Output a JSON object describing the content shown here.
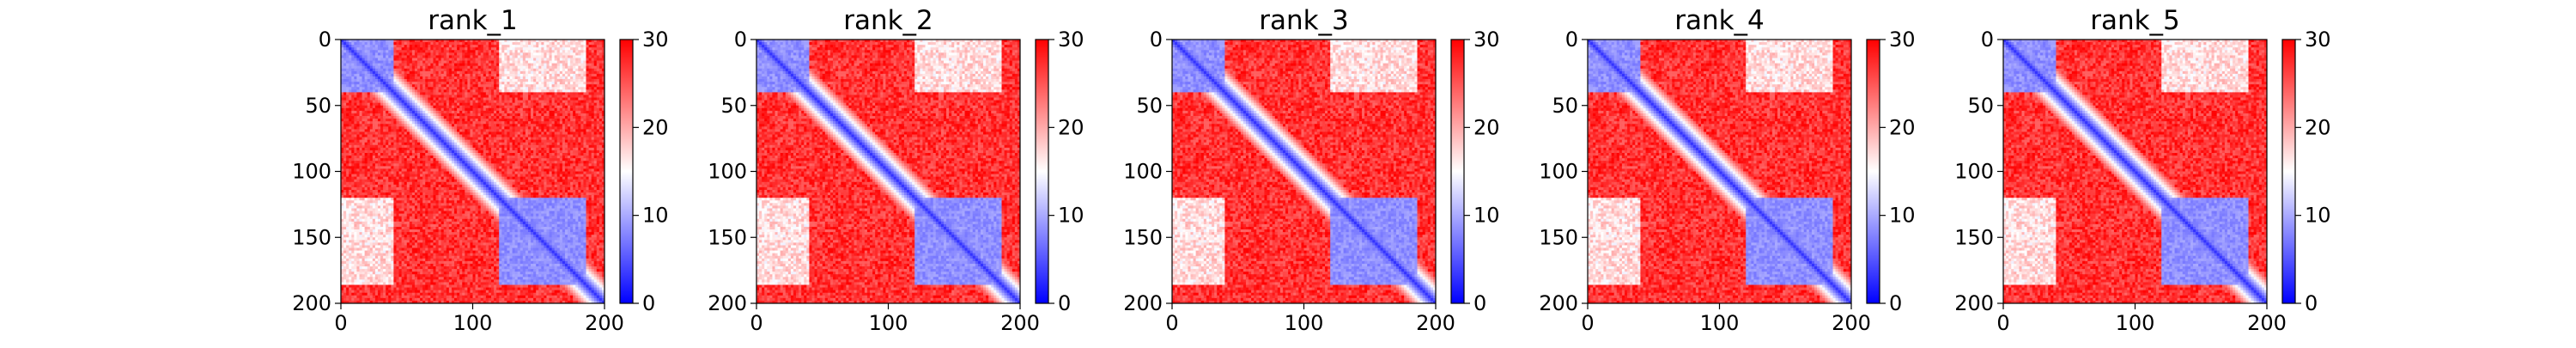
{
  "chart_data": [
    {
      "type": "heatmap",
      "title": "rank_1",
      "xlim": [
        0,
        200
      ],
      "ylim": [
        200,
        0
      ],
      "x_ticks": [
        "0",
        "100",
        "200"
      ],
      "y_ticks": [
        "0",
        "50",
        "100",
        "150",
        "200"
      ],
      "colorbar": {
        "range": [
          0,
          30
        ],
        "ticks": [
          "0",
          "10",
          "20",
          "30"
        ],
        "colors": [
          "#0000ff",
          "#ffffff",
          "#ff0000"
        ]
      }
    },
    {
      "type": "heatmap",
      "title": "rank_2",
      "xlim": [
        0,
        200
      ],
      "ylim": [
        200,
        0
      ],
      "x_ticks": [
        "0",
        "100",
        "200"
      ],
      "y_ticks": [
        "0",
        "50",
        "100",
        "150",
        "200"
      ],
      "colorbar": {
        "range": [
          0,
          30
        ],
        "ticks": [
          "0",
          "10",
          "20",
          "30"
        ],
        "colors": [
          "#0000ff",
          "#ffffff",
          "#ff0000"
        ]
      }
    },
    {
      "type": "heatmap",
      "title": "rank_3",
      "xlim": [
        0,
        200
      ],
      "ylim": [
        200,
        0
      ],
      "x_ticks": [
        "0",
        "100",
        "200"
      ],
      "y_ticks": [
        "0",
        "50",
        "100",
        "150",
        "200"
      ],
      "colorbar": {
        "range": [
          0,
          30
        ],
        "ticks": [
          "0",
          "10",
          "20",
          "30"
        ],
        "colors": [
          "#0000ff",
          "#ffffff",
          "#ff0000"
        ]
      }
    },
    {
      "type": "heatmap",
      "title": "rank_4",
      "xlim": [
        0,
        200
      ],
      "ylim": [
        200,
        0
      ],
      "x_ticks": [
        "0",
        "100",
        "200"
      ],
      "y_ticks": [
        "0",
        "50",
        "100",
        "150",
        "200"
      ],
      "colorbar": {
        "range": [
          0,
          30
        ],
        "ticks": [
          "0",
          "10",
          "20",
          "30"
        ],
        "colors": [
          "#0000ff",
          "#ffffff",
          "#ff0000"
        ]
      }
    },
    {
      "type": "heatmap",
      "title": "rank_5",
      "xlim": [
        0,
        200
      ],
      "ylim": [
        200,
        0
      ],
      "x_ticks": [
        "0",
        "100",
        "200"
      ],
      "y_ticks": [
        "0",
        "50",
        "100",
        "150",
        "200"
      ],
      "colorbar": {
        "range": [
          0,
          30
        ],
        "ticks": [
          "0",
          "10",
          "20",
          "30"
        ],
        "colors": [
          "#0000ff",
          "#ffffff",
          "#ff0000"
        ]
      }
    }
  ]
}
